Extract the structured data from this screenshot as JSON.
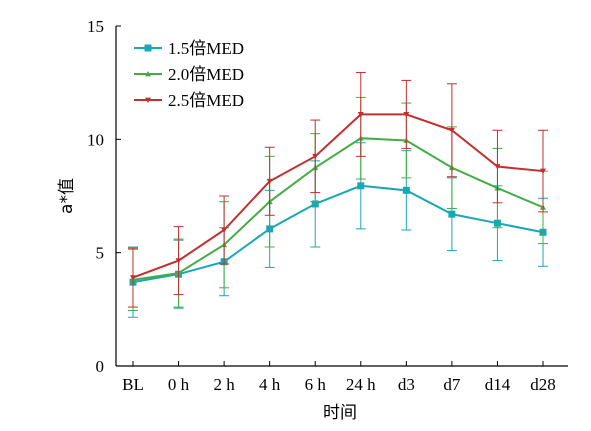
{
  "chart_data": {
    "type": "line",
    "xlabel": "时间",
    "ylabel": "a*值",
    "categories": [
      "BL",
      "0 h",
      "2 h",
      "4 h",
      "6 h",
      "24 h",
      "d3",
      "d7",
      "d14",
      "d28"
    ],
    "ylim": [
      0,
      15
    ],
    "yticks": [
      0,
      5,
      10,
      15
    ],
    "legend_position": "top-left",
    "series": [
      {
        "name": "1.5倍MED",
        "color": "#1aa7b5",
        "marker": "square",
        "values": [
          3.7,
          4.05,
          4.6,
          6.05,
          7.15,
          7.95,
          7.75,
          6.7,
          6.3,
          5.9
        ],
        "errors": [
          1.55,
          1.5,
          1.5,
          1.7,
          1.9,
          1.9,
          1.75,
          1.6,
          1.65,
          1.5
        ]
      },
      {
        "name": "2.0倍MED",
        "color": "#45ac45",
        "marker": "triangle-up",
        "values": [
          3.8,
          4.1,
          5.35,
          7.25,
          8.75,
          10.05,
          9.95,
          8.75,
          7.85,
          7.0
        ],
        "errors": [
          1.35,
          1.5,
          1.9,
          2.0,
          1.5,
          1.8,
          1.65,
          1.8,
          1.75,
          1.6
        ]
      },
      {
        "name": "2.5倍MED",
        "color": "#c22f2f",
        "marker": "triangle-down",
        "values": [
          3.9,
          4.65,
          6.0,
          8.15,
          9.25,
          11.1,
          11.1,
          10.4,
          8.8,
          8.6
        ],
        "errors": [
          1.3,
          1.5,
          1.5,
          1.5,
          1.6,
          1.85,
          1.5,
          2.05,
          1.6,
          1.8
        ]
      }
    ]
  }
}
